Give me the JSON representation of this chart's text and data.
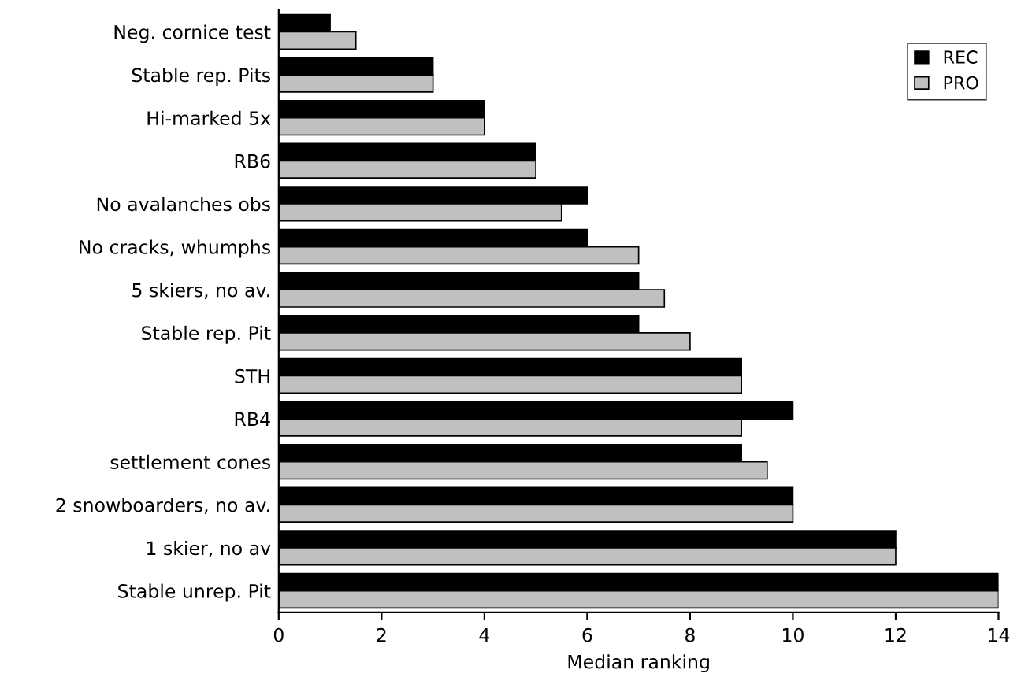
{
  "chart_data": {
    "type": "bar",
    "orientation": "horizontal",
    "xlabel": "Median ranking",
    "categories": [
      "Neg. cornice test",
      "Stable rep. Pits",
      "Hi-marked 5x",
      "RB6",
      "No avalanches obs",
      "No cracks, whumphs",
      "5 skiers, no av.",
      "Stable rep. Pit",
      "STH",
      "RB4",
      "settlement cones",
      "2 snowboarders, no av.",
      "1 skier, no av",
      "Stable unrep. Pit"
    ],
    "series": [
      {
        "name": "REC",
        "color": "#000000",
        "values": [
          1,
          3,
          4,
          5,
          6,
          6,
          7,
          7,
          9,
          10,
          9,
          10,
          12,
          14
        ]
      },
      {
        "name": "PRO",
        "color": "#c0c0c0",
        "values": [
          1.5,
          3,
          4,
          5,
          5.5,
          7,
          7.5,
          8,
          9,
          9,
          9.5,
          10,
          12,
          14
        ]
      }
    ],
    "xlim": [
      0,
      14
    ],
    "xticks": [
      0,
      2,
      4,
      6,
      8,
      10,
      12,
      14
    ],
    "grid": false,
    "legend": "top right"
  }
}
